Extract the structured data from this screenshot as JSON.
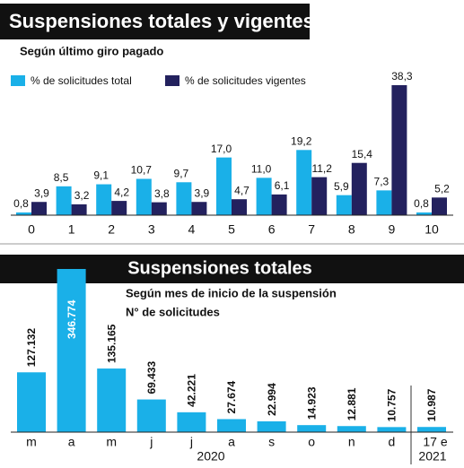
{
  "chart_data": [
    {
      "type": "bar",
      "title": "Suspensiones totales y vigentes",
      "subtitle": "Según último giro pagado",
      "categories": [
        "0",
        "1",
        "2",
        "3",
        "4",
        "5",
        "6",
        "7",
        "8",
        "9",
        "10"
      ],
      "series": [
        {
          "name": "% de solicitudes total",
          "color": "#1ab0e8",
          "values": [
            0.8,
            8.5,
            9.1,
            10.7,
            9.7,
            17.0,
            11.0,
            19.2,
            5.9,
            7.3,
            0.8
          ],
          "value_labels": [
            "0,8",
            "8,5",
            "9,1",
            "10,7",
            "9,7",
            "17,0",
            "11,0",
            "19,2",
            "5,9",
            "7,3",
            "0,8"
          ]
        },
        {
          "name": "% de solicitudes vigentes",
          "color": "#23215e",
          "values": [
            3.9,
            3.2,
            4.2,
            3.8,
            3.9,
            4.7,
            6.1,
            11.2,
            15.4,
            38.3,
            5.2
          ],
          "value_labels": [
            "3,9",
            "3,2",
            "4,2",
            "3,8",
            "3,9",
            "4,7",
            "6,1",
            "11,2",
            "15,4",
            "38,3",
            "5,2"
          ]
        }
      ]
    },
    {
      "type": "bar",
      "title": "Suspensiones totales",
      "subtitle": "Según mes de inicio de la suspensión",
      "y_label": "N° de solicitudes",
      "categories": [
        "m",
        "a",
        "m",
        "j",
        "j",
        "a",
        "s",
        "o",
        "n",
        "d",
        "17 e"
      ],
      "color": "#1ab0e8",
      "values": [
        127132,
        346774,
        135165,
        69433,
        42221,
        27674,
        22994,
        14923,
        12881,
        10757,
        10987
      ],
      "value_labels": [
        "127.132",
        "346.774",
        "135.165",
        "69.433",
        "42.221",
        "27.674",
        "22.994",
        "14.923",
        "12.881",
        "10.757",
        "10.987"
      ],
      "year_labels": [
        "2020",
        "2021"
      ]
    }
  ]
}
